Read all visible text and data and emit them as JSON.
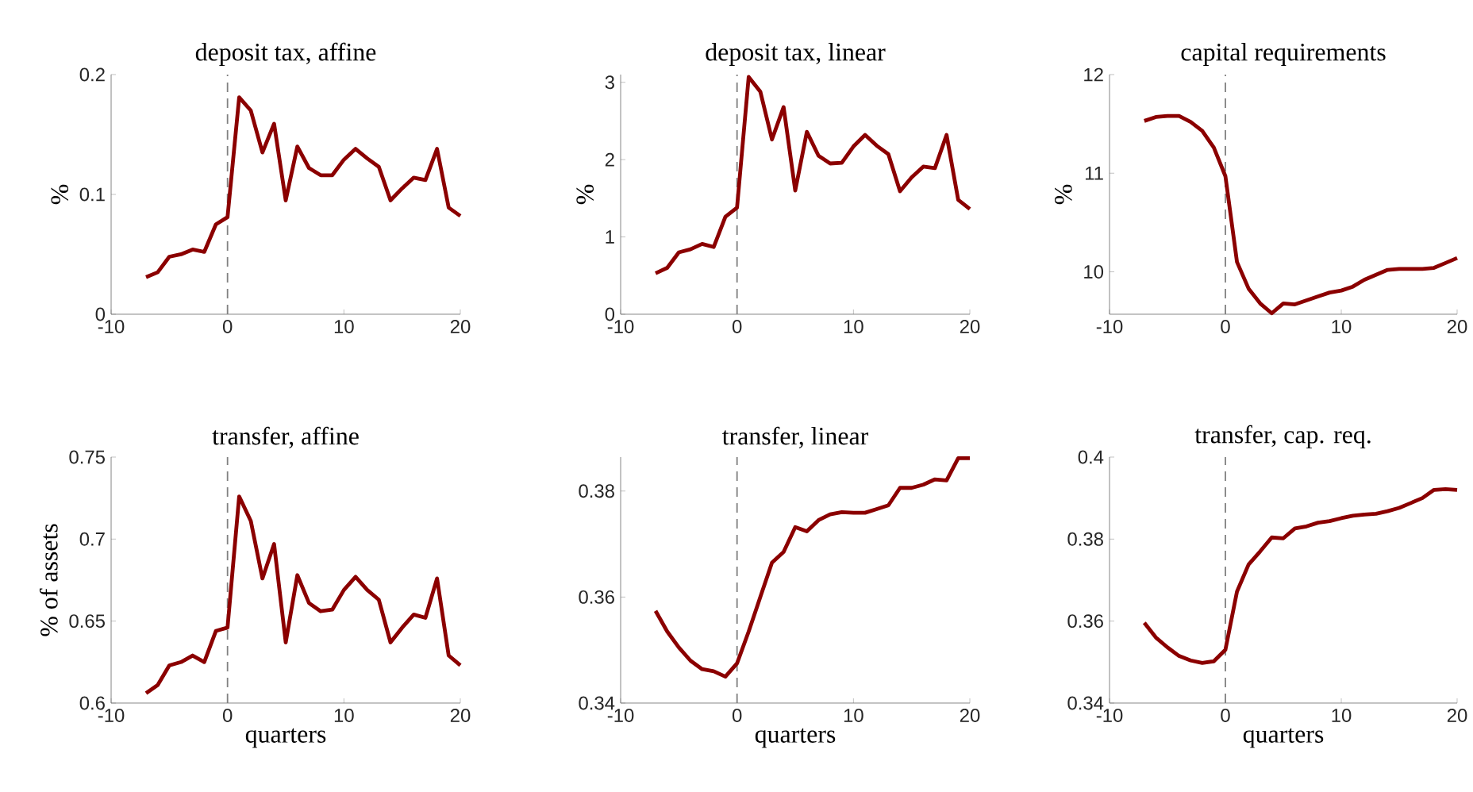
{
  "chart_data": [
    {
      "type": "line",
      "title": "deposit tax, affine",
      "ylabel": "%",
      "x": [
        -7,
        -6,
        -5,
        -4,
        -3,
        -2,
        -1,
        0,
        1,
        2,
        3,
        4,
        5,
        6,
        7,
        8,
        9,
        10,
        11,
        12,
        13,
        14,
        15,
        16,
        17,
        18,
        19,
        20
      ],
      "series": [
        {
          "color": "#8b0000",
          "values": [
            0.031,
            0.035,
            0.048,
            0.05,
            0.054,
            0.052,
            0.075,
            0.081,
            0.181,
            0.17,
            0.135,
            0.159,
            0.095,
            0.14,
            0.122,
            0.116,
            0.116,
            0.129,
            0.138,
            0.13,
            0.123,
            0.095,
            0.105,
            0.114,
            0.112,
            0.138,
            0.089,
            0.082
          ]
        }
      ],
      "xlim": [
        -10,
        20
      ],
      "xticks": [
        -10,
        0,
        10,
        20
      ],
      "ylim": [
        0,
        0.2
      ],
      "yticks": [
        0,
        0.1,
        0.2
      ],
      "ref_lines": [
        {
          "axis": "x",
          "value": 0,
          "color": "#808080",
          "line_style": "dashed"
        }
      ]
    },
    {
      "type": "line",
      "title": "deposit tax, linear",
      "ylabel": "%",
      "x": [
        -7,
        -6,
        -5,
        -4,
        -3,
        -2,
        -1,
        0,
        1,
        2,
        3,
        4,
        5,
        6,
        7,
        8,
        9,
        10,
        11,
        12,
        13,
        14,
        15,
        16,
        17,
        18,
        19,
        20
      ],
      "series": [
        {
          "color": "#8b0000",
          "values": [
            0.53,
            0.6,
            0.8,
            0.84,
            0.91,
            0.87,
            1.26,
            1.38,
            3.07,
            2.88,
            2.26,
            2.68,
            1.6,
            2.36,
            2.05,
            1.95,
            1.96,
            2.17,
            2.32,
            2.18,
            2.07,
            1.59,
            1.77,
            1.91,
            1.89,
            2.32,
            1.48,
            1.36
          ]
        }
      ],
      "xlim": [
        -10,
        20
      ],
      "xticks": [
        -10,
        0,
        10,
        20
      ],
      "ylim": [
        0,
        3.1
      ],
      "yticks": [
        0,
        1,
        2,
        3
      ],
      "ref_lines": [
        {
          "axis": "x",
          "value": 0,
          "color": "#808080",
          "line_style": "dashed"
        }
      ]
    },
    {
      "type": "line",
      "title": "capital requirements",
      "ylabel": "%",
      "x": [
        -7,
        -6,
        -5,
        -4,
        -3,
        -2,
        -1,
        0,
        1,
        2,
        3,
        4,
        5,
        6,
        7,
        8,
        9,
        10,
        11,
        12,
        13,
        14,
        15,
        16,
        17,
        18,
        19,
        20
      ],
      "series": [
        {
          "color": "#8b0000",
          "values": [
            11.53,
            11.57,
            11.58,
            11.58,
            11.52,
            11.43,
            11.26,
            10.97,
            10.1,
            9.83,
            9.68,
            9.58,
            9.68,
            9.67,
            9.71,
            9.75,
            9.79,
            9.81,
            9.85,
            9.92,
            9.97,
            10.02,
            10.03,
            10.03,
            10.03,
            10.04,
            10.09,
            10.14
          ]
        }
      ],
      "xlim": [
        -10,
        20
      ],
      "xticks": [
        -10,
        0,
        10,
        20
      ],
      "ylim": [
        9.57,
        12
      ],
      "yticks": [
        10,
        11,
        12
      ],
      "ref_lines": [
        {
          "axis": "x",
          "value": 0,
          "color": "#808080",
          "line_style": "dashed"
        }
      ]
    },
    {
      "type": "line",
      "title": "transfer, affine",
      "xlabel": "quarters",
      "ylabel": "% of assets",
      "x": [
        -7,
        -6,
        -5,
        -4,
        -3,
        -2,
        -1,
        0,
        1,
        2,
        3,
        4,
        5,
        6,
        7,
        8,
        9,
        10,
        11,
        12,
        13,
        14,
        15,
        16,
        17,
        18,
        19,
        20
      ],
      "series": [
        {
          "color": "#8b0000",
          "values": [
            0.606,
            0.611,
            0.623,
            0.625,
            0.629,
            0.625,
            0.644,
            0.646,
            0.726,
            0.711,
            0.676,
            0.697,
            0.637,
            0.678,
            0.661,
            0.656,
            0.657,
            0.669,
            0.677,
            0.669,
            0.663,
            0.637,
            0.646,
            0.654,
            0.652,
            0.676,
            0.629,
            0.623
          ]
        }
      ],
      "xlim": [
        -10,
        20
      ],
      "xticks": [
        -10,
        0,
        10,
        20
      ],
      "ylim": [
        0.6,
        0.75
      ],
      "yticks": [
        0.6,
        0.65,
        0.7,
        0.75
      ],
      "ref_lines": [
        {
          "axis": "x",
          "value": 0,
          "color": "#808080",
          "line_style": "dashed"
        }
      ]
    },
    {
      "type": "line",
      "title": "transfer, linear",
      "xlabel": "quarters",
      "x": [
        -7,
        -6,
        -5,
        -4,
        -3,
        -2,
        -1,
        0,
        1,
        2,
        3,
        4,
        5,
        6,
        7,
        8,
        9,
        10,
        11,
        12,
        13,
        14,
        15,
        16,
        17,
        18,
        19,
        20
      ],
      "series": [
        {
          "color": "#8b0000",
          "values": [
            0.3574,
            0.3535,
            0.3505,
            0.348,
            0.3464,
            0.346,
            0.345,
            0.3475,
            0.3535,
            0.36,
            0.3665,
            0.3685,
            0.3732,
            0.3724,
            0.3745,
            0.3756,
            0.376,
            0.3759,
            0.3759,
            0.3766,
            0.3773,
            0.3806,
            0.3806,
            0.3812,
            0.3822,
            0.382,
            0.3862,
            0.3862
          ]
        }
      ],
      "xlim": [
        -10,
        20
      ],
      "xticks": [
        -10,
        0,
        10,
        20
      ],
      "ylim": [
        0.34,
        0.3864
      ],
      "yticks": [
        0.34,
        0.36,
        0.38
      ],
      "ref_lines": [
        {
          "axis": "x",
          "value": 0,
          "color": "#808080",
          "line_style": "dashed"
        }
      ]
    },
    {
      "type": "line",
      "title": "transfer, cap. req.",
      "xlabel": "quarters",
      "x": [
        -7,
        -6,
        -5,
        -4,
        -3,
        -2,
        -1,
        0,
        1,
        2,
        3,
        4,
        5,
        6,
        7,
        8,
        9,
        10,
        11,
        12,
        13,
        14,
        15,
        16,
        17,
        18,
        19,
        20
      ],
      "series": [
        {
          "color": "#8b0000",
          "values": [
            0.3596,
            0.356,
            0.3536,
            0.3515,
            0.3504,
            0.3498,
            0.3502,
            0.353,
            0.3672,
            0.3738,
            0.377,
            0.3804,
            0.3802,
            0.3826,
            0.3831,
            0.384,
            0.3844,
            0.3851,
            0.3857,
            0.386,
            0.3862,
            0.3868,
            0.3876,
            0.3888,
            0.39,
            0.392,
            0.3922,
            0.392
          ]
        }
      ],
      "xlim": [
        -10,
        20
      ],
      "xticks": [
        -10,
        0,
        10,
        20
      ],
      "ylim": [
        0.34,
        0.4
      ],
      "yticks": [
        0.34,
        0.36,
        0.38,
        0.4
      ],
      "ref_lines": [
        {
          "axis": "x",
          "value": 0,
          "color": "#808080",
          "line_style": "dashed"
        }
      ]
    }
  ]
}
